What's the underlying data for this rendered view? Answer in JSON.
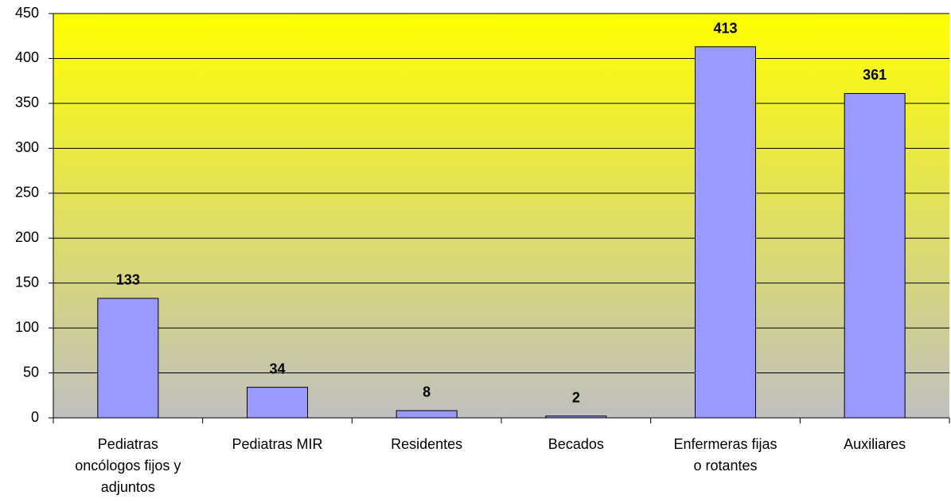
{
  "chart_data": {
    "type": "bar",
    "categories": [
      [
        "Pediatras",
        "oncólogos fijos y",
        "adjuntos"
      ],
      [
        "Pediatras MIR"
      ],
      [
        "Residentes"
      ],
      [
        "Becados"
      ],
      [
        "Enfermeras fijas",
        "o rotantes"
      ],
      [
        "Auxiliares"
      ]
    ],
    "values": [
      133,
      34,
      8,
      2,
      413,
      361
    ],
    "color": "#9999ff",
    "value_label_color": "#ff0000",
    "ylim": [
      0,
      450
    ],
    "yticks": [
      0,
      50,
      100,
      150,
      200,
      250,
      300,
      350,
      400,
      450
    ],
    "grid": true
  }
}
